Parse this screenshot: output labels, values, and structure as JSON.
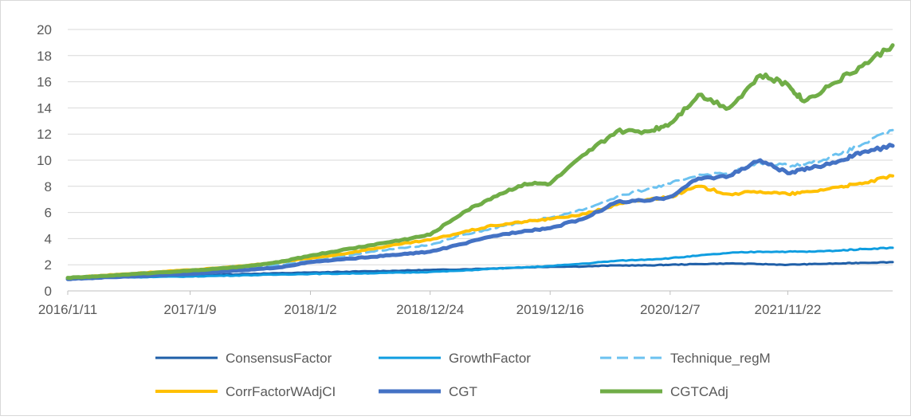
{
  "chart_data": {
    "type": "line",
    "title": "",
    "xlabel": "",
    "ylabel": "",
    "ylim": [
      0,
      20
    ],
    "yticks": [
      0,
      2,
      4,
      6,
      8,
      10,
      12,
      14,
      16,
      18,
      20
    ],
    "grid": "horizontal",
    "legend_position": "bottom",
    "x_start": "2016/1/11",
    "x_end": "2022/9/30",
    "xtick_labels": [
      {
        "date": "2016/1/11",
        "label": "2016/1/11"
      },
      {
        "date": "2017/1/9",
        "label": "2017/1/9"
      },
      {
        "date": "2018/1/2",
        "label": "2018/1/2"
      },
      {
        "date": "2018/12/24",
        "label": "2018/12/24"
      },
      {
        "date": "2019/12/16",
        "label": "2019/12/16"
      },
      {
        "date": "2020/12/7",
        "label": "2020/12/7"
      },
      {
        "date": "2021/11/22",
        "label": "2021/11/22"
      }
    ],
    "series": [
      {
        "name": "ConsensusFactor",
        "color": "#1f5fa8",
        "dash": false,
        "width": 3,
        "points": [
          [
            "2016/1/11",
            1.0
          ],
          [
            "2016/4/1",
            1.02
          ],
          [
            "2016/7/1",
            1.05
          ],
          [
            "2016/10/1",
            1.1
          ],
          [
            "2017/1/9",
            1.15
          ],
          [
            "2017/4/1",
            1.22
          ],
          [
            "2017/7/1",
            1.3
          ],
          [
            "2017/10/1",
            1.35
          ],
          [
            "2018/1/2",
            1.4
          ],
          [
            "2018/4/1",
            1.45
          ],
          [
            "2018/7/1",
            1.5
          ],
          [
            "2018/10/1",
            1.55
          ],
          [
            "2018/12/24",
            1.6
          ],
          [
            "2019/4/1",
            1.65
          ],
          [
            "2019/7/1",
            1.72
          ],
          [
            "2019/10/1",
            1.8
          ],
          [
            "2019/12/16",
            1.85
          ],
          [
            "2020/4/1",
            1.88
          ],
          [
            "2020/7/1",
            1.95
          ],
          [
            "2020/10/1",
            1.95
          ],
          [
            "2020/12/7",
            2.0
          ],
          [
            "2021/3/1",
            2.05
          ],
          [
            "2021/6/1",
            2.1
          ],
          [
            "2021/9/1",
            2.05
          ],
          [
            "2021/11/22",
            2.0
          ],
          [
            "2022/2/1",
            2.05
          ],
          [
            "2022/5/1",
            2.1
          ],
          [
            "2022/7/1",
            2.15
          ],
          [
            "2022/9/30",
            2.2
          ]
        ]
      },
      {
        "name": "GrowthFactor",
        "color": "#0f9de0",
        "dash": false,
        "width": 3,
        "points": [
          [
            "2016/1/11",
            1.0
          ],
          [
            "2016/4/1",
            1.02
          ],
          [
            "2016/7/1",
            1.04
          ],
          [
            "2016/10/1",
            1.07
          ],
          [
            "2017/1/9",
            1.1
          ],
          [
            "2017/4/1",
            1.15
          ],
          [
            "2017/7/1",
            1.2
          ],
          [
            "2017/10/1",
            1.25
          ],
          [
            "2018/1/2",
            1.3
          ],
          [
            "2018/4/1",
            1.32
          ],
          [
            "2018/7/1",
            1.35
          ],
          [
            "2018/10/1",
            1.4
          ],
          [
            "2018/12/24",
            1.45
          ],
          [
            "2019/4/1",
            1.55
          ],
          [
            "2019/7/1",
            1.7
          ],
          [
            "2019/10/1",
            1.8
          ],
          [
            "2019/12/16",
            1.9
          ],
          [
            "2020/4/1",
            2.1
          ],
          [
            "2020/7/1",
            2.3
          ],
          [
            "2020/10/1",
            2.4
          ],
          [
            "2020/12/7",
            2.5
          ],
          [
            "2021/3/1",
            2.7
          ],
          [
            "2021/6/1",
            2.9
          ],
          [
            "2021/9/1",
            3.0
          ],
          [
            "2021/11/22",
            3.0
          ],
          [
            "2022/2/1",
            3.0
          ],
          [
            "2022/5/1",
            3.1
          ],
          [
            "2022/7/1",
            3.2
          ],
          [
            "2022/9/30",
            3.3
          ]
        ]
      },
      {
        "name": "Technique_regM",
        "color": "#6cc2f0",
        "dash": true,
        "width": 3,
        "points": [
          [
            "2016/1/11",
            1.0
          ],
          [
            "2016/4/1",
            1.05
          ],
          [
            "2016/7/1",
            1.15
          ],
          [
            "2016/10/1",
            1.25
          ],
          [
            "2017/1/9",
            1.35
          ],
          [
            "2017/4/1",
            1.5
          ],
          [
            "2017/7/1",
            1.7
          ],
          [
            "2017/10/1",
            1.95
          ],
          [
            "2018/1/2",
            2.3
          ],
          [
            "2018/4/1",
            2.6
          ],
          [
            "2018/7/1",
            3.0
          ],
          [
            "2018/10/1",
            3.3
          ],
          [
            "2018/12/24",
            3.5
          ],
          [
            "2019/4/1",
            4.3
          ],
          [
            "2019/7/1",
            4.8
          ],
          [
            "2019/10/1",
            5.3
          ],
          [
            "2019/12/16",
            5.6
          ],
          [
            "2020/4/1",
            6.3
          ],
          [
            "2020/7/1",
            7.2
          ],
          [
            "2020/10/1",
            7.8
          ],
          [
            "2020/12/7",
            8.2
          ],
          [
            "2021/3/1",
            8.9
          ],
          [
            "2021/6/1",
            9.0
          ],
          [
            "2021/9/1",
            9.8
          ],
          [
            "2021/11/22",
            9.6
          ],
          [
            "2022/2/1",
            9.8
          ],
          [
            "2022/5/1",
            10.5
          ],
          [
            "2022/7/1",
            11.2
          ],
          [
            "2022/9/30",
            12.3
          ]
        ]
      },
      {
        "name": "CorrFactorWAdjCI",
        "color": "#ffc000",
        "dash": false,
        "width": 4,
        "points": [
          [
            "2016/1/11",
            1.0
          ],
          [
            "2016/4/1",
            1.15
          ],
          [
            "2016/7/1",
            1.3
          ],
          [
            "2016/10/1",
            1.45
          ],
          [
            "2017/1/9",
            1.6
          ],
          [
            "2017/4/1",
            1.75
          ],
          [
            "2017/7/1",
            1.95
          ],
          [
            "2017/10/1",
            2.2
          ],
          [
            "2018/1/2",
            2.5
          ],
          [
            "2018/4/1",
            2.8
          ],
          [
            "2018/7/1",
            3.2
          ],
          [
            "2018/10/1",
            3.6
          ],
          [
            "2018/12/24",
            3.9
          ],
          [
            "2019/4/1",
            4.5
          ],
          [
            "2019/7/1",
            5.0
          ],
          [
            "2019/10/1",
            5.3
          ],
          [
            "2019/12/16",
            5.5
          ],
          [
            "2020/4/1",
            5.9
          ],
          [
            "2020/7/1",
            6.6
          ],
          [
            "2020/10/1",
            7.0
          ],
          [
            "2020/12/7",
            7.2
          ],
          [
            "2021/3/1",
            8.0
          ],
          [
            "2021/6/1",
            7.4
          ],
          [
            "2021/9/1",
            7.6
          ],
          [
            "2021/11/22",
            7.4
          ],
          [
            "2022/2/1",
            7.6
          ],
          [
            "2022/5/1",
            8.0
          ],
          [
            "2022/7/1",
            8.2
          ],
          [
            "2022/9/30",
            8.8
          ]
        ]
      },
      {
        "name": "CGT",
        "color": "#4472c4",
        "dash": false,
        "width": 5,
        "points": [
          [
            "2016/1/11",
            0.9
          ],
          [
            "2016/4/1",
            1.0
          ],
          [
            "2016/7/1",
            1.1
          ],
          [
            "2016/10/1",
            1.2
          ],
          [
            "2017/1/9",
            1.3
          ],
          [
            "2017/4/1",
            1.45
          ],
          [
            "2017/7/1",
            1.6
          ],
          [
            "2017/10/1",
            1.8
          ],
          [
            "2018/1/2",
            2.2
          ],
          [
            "2018/4/1",
            2.4
          ],
          [
            "2018/7/1",
            2.6
          ],
          [
            "2018/10/1",
            2.8
          ],
          [
            "2018/12/24",
            3.0
          ],
          [
            "2019/4/1",
            3.6
          ],
          [
            "2019/7/1",
            4.2
          ],
          [
            "2019/10/1",
            4.6
          ],
          [
            "2019/12/16",
            4.8
          ],
          [
            "2020/4/1",
            5.6
          ],
          [
            "2020/7/1",
            6.8
          ],
          [
            "2020/10/1",
            6.9
          ],
          [
            "2020/12/7",
            7.2
          ],
          [
            "2021/3/1",
            8.6
          ],
          [
            "2021/6/1",
            8.8
          ],
          [
            "2021/9/1",
            10.0
          ],
          [
            "2021/11/22",
            9.0
          ],
          [
            "2022/2/1",
            9.4
          ],
          [
            "2022/5/1",
            10.0
          ],
          [
            "2022/7/1",
            10.6
          ],
          [
            "2022/9/30",
            11.1
          ]
        ]
      },
      {
        "name": "CGTCAdj",
        "color": "#70ad47",
        "dash": false,
        "width": 5,
        "points": [
          [
            "2016/1/11",
            1.0
          ],
          [
            "2016/4/1",
            1.1
          ],
          [
            "2016/7/1",
            1.25
          ],
          [
            "2016/10/1",
            1.4
          ],
          [
            "2017/1/9",
            1.55
          ],
          [
            "2017/4/1",
            1.7
          ],
          [
            "2017/7/1",
            1.9
          ],
          [
            "2017/10/1",
            2.2
          ],
          [
            "2018/1/2",
            2.7
          ],
          [
            "2018/4/1",
            3.1
          ],
          [
            "2018/7/1",
            3.5
          ],
          [
            "2018/10/1",
            3.9
          ],
          [
            "2018/12/24",
            4.3
          ],
          [
            "2019/4/1",
            6.0
          ],
          [
            "2019/7/1",
            7.2
          ],
          [
            "2019/10/1",
            8.2
          ],
          [
            "2019/12/16",
            8.2
          ],
          [
            "2020/4/1",
            10.5
          ],
          [
            "2020/7/1",
            12.2
          ],
          [
            "2020/10/1",
            12.2
          ],
          [
            "2020/12/7",
            12.8
          ],
          [
            "2021/3/1",
            15.0
          ],
          [
            "2021/6/1",
            14.0
          ],
          [
            "2021/9/1",
            16.5
          ],
          [
            "2021/11/22",
            15.8
          ],
          [
            "2022/1/10",
            14.5
          ],
          [
            "2022/4/1",
            15.8
          ],
          [
            "2022/7/1",
            17.2
          ],
          [
            "2022/9/30",
            18.8
          ]
        ]
      }
    ]
  }
}
